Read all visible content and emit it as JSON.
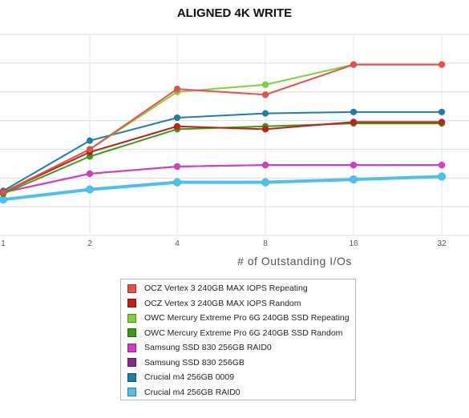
{
  "chart_data": {
    "type": "line",
    "title": "ALIGNED 4K WRITE",
    "xlabel": "# of Outstanding I/Os",
    "ylabel": "",
    "x_scale": "log2",
    "x": [
      1,
      2,
      4,
      8,
      16,
      32
    ],
    "categories": [
      "1",
      "2",
      "4",
      "8",
      "16",
      "32"
    ],
    "ylim": [
      0,
      7
    ],
    "grid": true,
    "legend_position": "bottom",
    "series": [
      {
        "name": "OCZ Vertex 3 240GB MAX IOPS Repeating",
        "color": "#e8504a",
        "values": [
          1.5,
          3.0,
          5.1,
          4.9,
          5.95,
          5.95
        ]
      },
      {
        "name": "OCZ Vertex 3 240GB MAX IOPS Random",
        "color": "#c0201c",
        "values": [
          1.5,
          2.9,
          3.8,
          3.7,
          3.95,
          3.95
        ]
      },
      {
        "name": "OWC Mercury Extreme Pro 6G 240GB SSD Repeating",
        "color": "#7ed23a",
        "values": [
          1.5,
          3.0,
          5.0,
          5.25,
          5.95,
          5.95
        ]
      },
      {
        "name": "OWC Mercury Extreme Pro 6G 240GB SSD Random",
        "color": "#3c9a16",
        "values": [
          1.45,
          2.75,
          3.7,
          3.8,
          3.9,
          3.9
        ]
      },
      {
        "name": "Samsung SSD 830 256GB RAID0",
        "color": "#d63cc8",
        "values": [
          1.5,
          2.15,
          2.4,
          2.45,
          2.45,
          2.45
        ]
      },
      {
        "name": "Samsung SSD 830 256GB",
        "color": "#8a2a8e",
        "values": [
          1.5,
          2.15,
          2.4,
          2.45,
          2.45,
          2.45
        ]
      },
      {
        "name": "Crucial m4 256GB 0009",
        "color": "#1f7ea8",
        "values": [
          1.55,
          3.3,
          4.1,
          4.25,
          4.3,
          4.3
        ]
      },
      {
        "name": "Crucial m4 256GB RAID0",
        "color": "#4fc0ee",
        "values": [
          1.25,
          1.6,
          1.85,
          1.85,
          1.95,
          2.05
        ]
      }
    ]
  }
}
